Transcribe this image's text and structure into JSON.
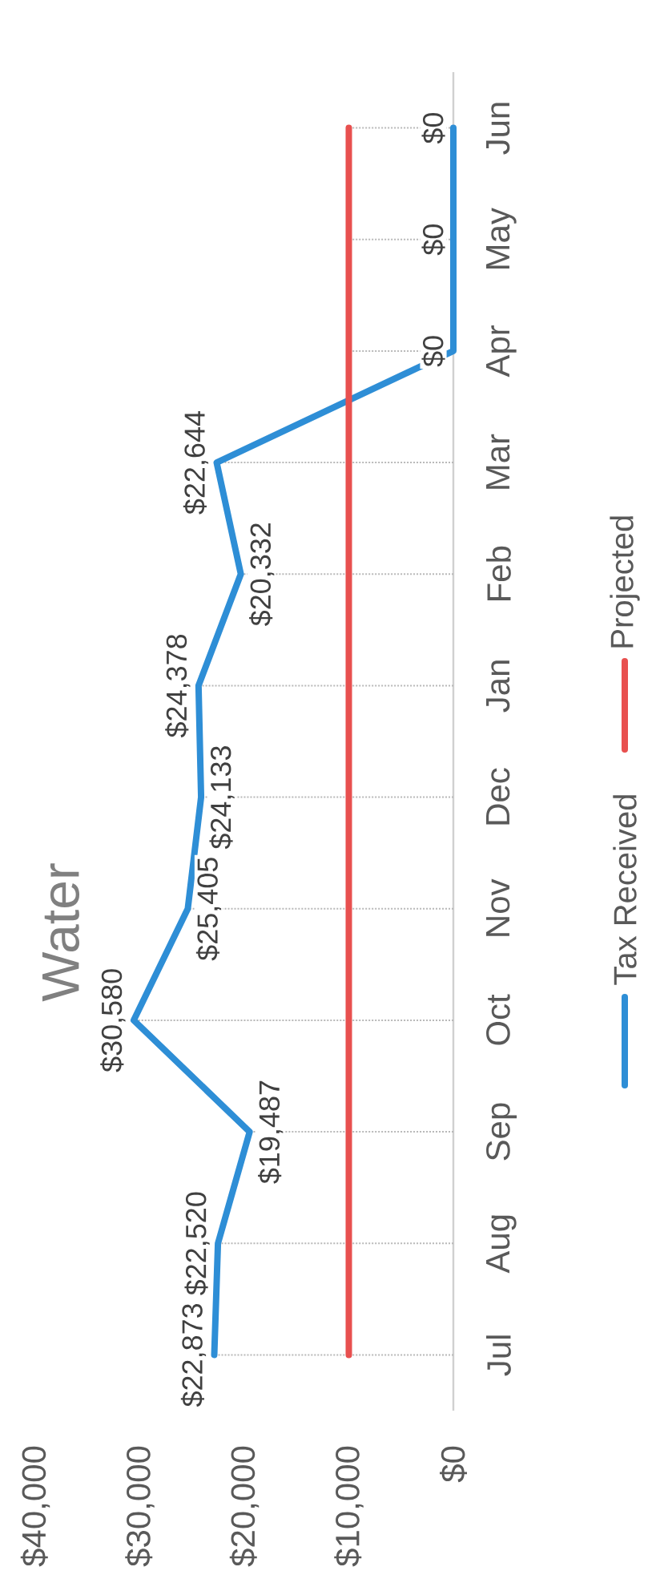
{
  "chart_data": {
    "type": "line",
    "orientation": "horizontal",
    "title": "Water",
    "categories": [
      "Jun",
      "May",
      "Apr",
      "Mar",
      "Feb",
      "Jan",
      "Dec",
      "Nov",
      "Oct",
      "Sep",
      "Aug",
      "Jul"
    ],
    "series": [
      {
        "name": "Tax Received",
        "color": "#2e8ed6",
        "values": [
          0,
          0,
          0,
          22644,
          20332,
          24378,
          24133,
          25405,
          30580,
          19487,
          22520,
          22873
        ],
        "value_labels": [
          "$0",
          "$0",
          "$0",
          "$22,644",
          "$20,332",
          "$24,378",
          "$24,133",
          "$25,405",
          "$30,580",
          "$19,487",
          "$22,520",
          "$22,873"
        ]
      },
      {
        "name": "Projected",
        "color": "#e8504f",
        "values": [
          10000,
          10000,
          10000,
          10000,
          10000,
          10000,
          10000,
          10000,
          10000,
          10000,
          10000,
          10000
        ]
      }
    ],
    "xlim": [
      40000,
      0
    ],
    "xticks": [
      {
        "value": 40000,
        "label": "$40,000"
      },
      {
        "value": 30000,
        "label": "$30,000"
      },
      {
        "value": 20000,
        "label": "$20,000"
      },
      {
        "value": 10000,
        "label": "$10,000"
      },
      {
        "value": 0,
        "label": "$0"
      }
    ],
    "grid": "y",
    "legend": "right"
  }
}
